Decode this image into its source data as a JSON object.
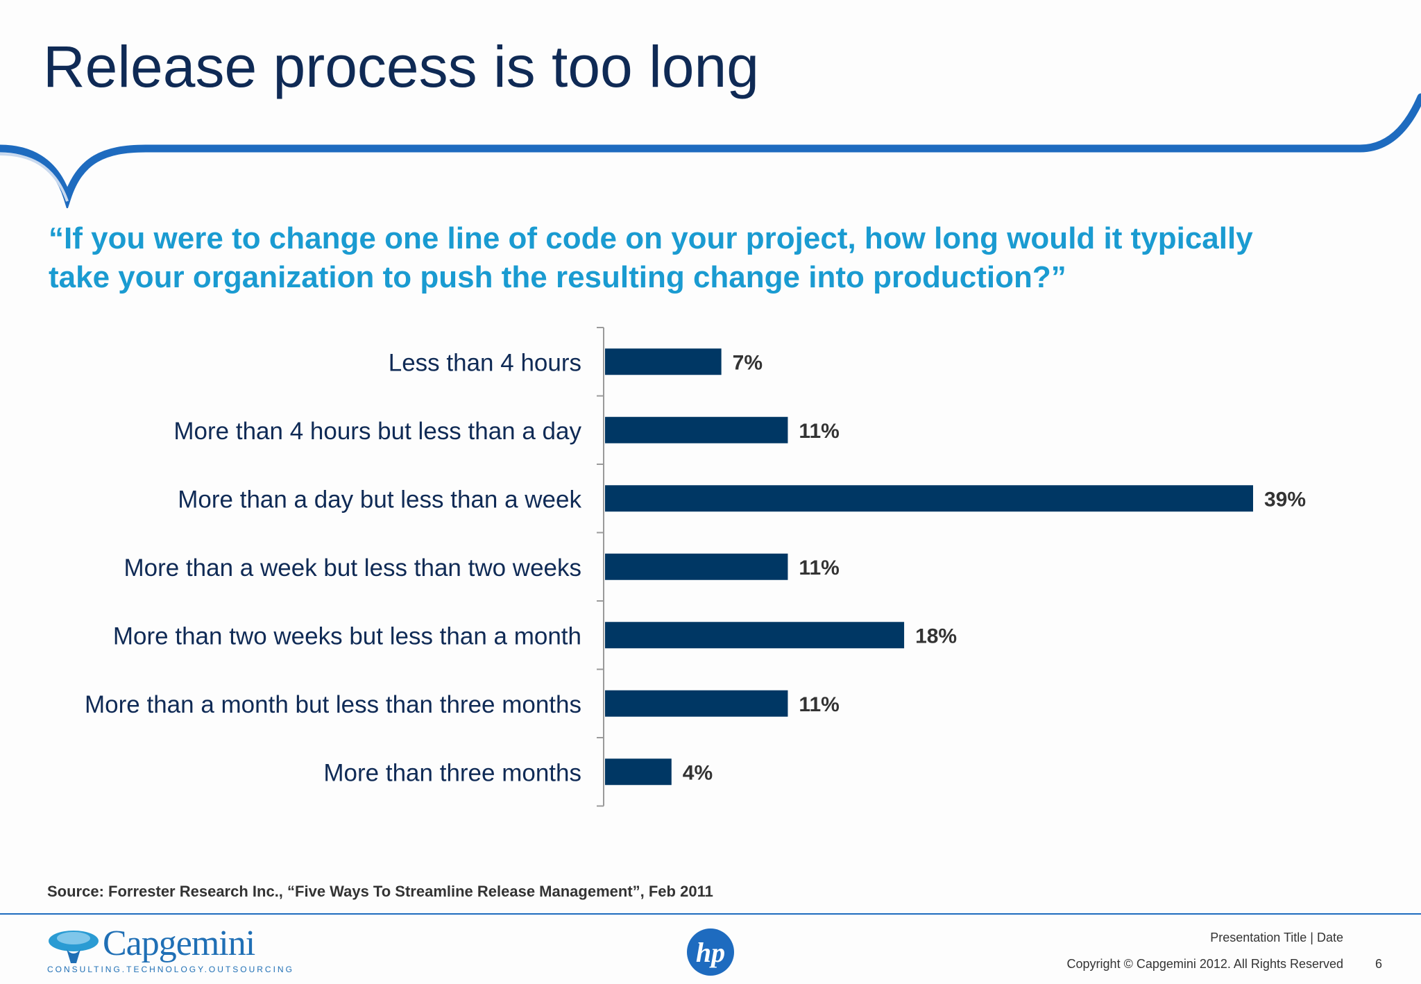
{
  "slide": {
    "title": "Release process is too long",
    "question_line1": "“If you were to change one line of code on your project, how long would it typically",
    "question_line2": "take your organization to push the resulting change into production?”"
  },
  "chart_data": {
    "type": "bar",
    "orientation": "horizontal",
    "categories": [
      "Less than 4 hours",
      "More than 4 hours but less than a day",
      "More than a day but less than a week",
      "More than a week but less than two weeks",
      "More than two weeks but less than a month",
      "More than a month but less than three months",
      "More than three months"
    ],
    "values": [
      7,
      11,
      39,
      11,
      18,
      11,
      4
    ],
    "value_labels": [
      "7%",
      "11%",
      "39%",
      "11%",
      "18%",
      "11%",
      "4%"
    ],
    "value_unit": "%",
    "xlim": [
      0,
      39
    ],
    "grid": false,
    "legend": "none",
    "bar_color": "#003764"
  },
  "footer": {
    "source": "Source: Forrester Research Inc., “Five Ways To Streamline Release Management”, Feb 2011",
    "presentation_title": "Presentation Title | Date",
    "copyright": "Copyright © Capgemini 2012. All Rights Reserved",
    "page_number": "6",
    "capgemini_logo_text": "Capgemini",
    "capgemini_tagline": "CONSULTING.TECHNOLOGY.OUTSOURCING",
    "hp_logo_text": "hp"
  },
  "colors": {
    "title": "#0f2a55",
    "question": "#1a9bd1",
    "banner": "#1e6bbf",
    "bar": "#003764"
  }
}
